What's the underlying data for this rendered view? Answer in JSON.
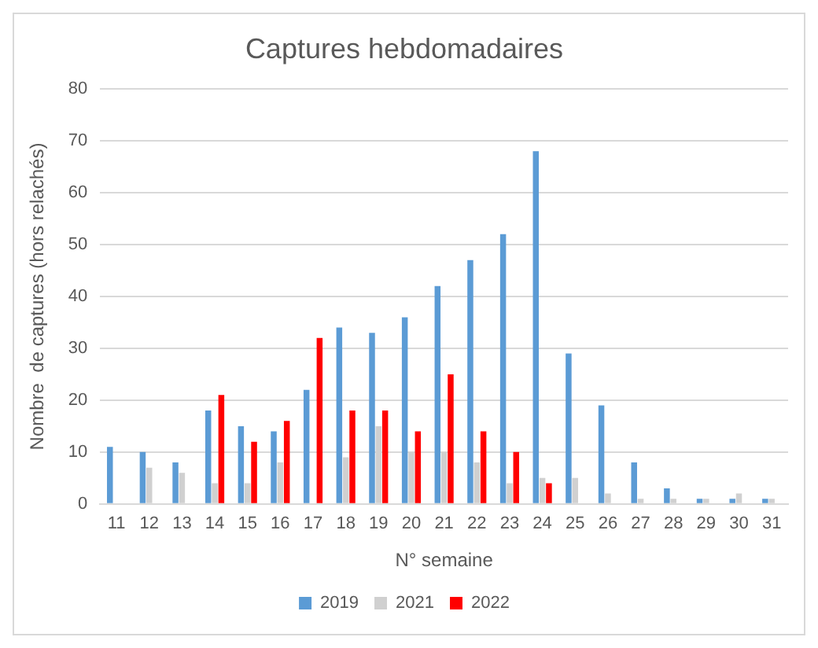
{
  "chart_data": {
    "type": "bar",
    "title": "Captures hebdomadaires",
    "xlabel": "N° semaine",
    "ylabel": "Nombre  de captures (hors relachés)",
    "categories": [
      "11",
      "12",
      "13",
      "14",
      "15",
      "16",
      "17",
      "18",
      "19",
      "20",
      "21",
      "22",
      "23",
      "24",
      "25",
      "26",
      "27",
      "28",
      "29",
      "30",
      "31"
    ],
    "series": [
      {
        "name": "2019",
        "color": "#5b9bd5",
        "values": [
          11,
          10,
          8,
          18,
          15,
          14,
          22,
          34,
          33,
          36,
          42,
          47,
          52,
          68,
          29,
          19,
          8,
          3,
          1,
          1,
          1
        ]
      },
      {
        "name": "2021",
        "color": "#d0d0d0",
        "values": [
          null,
          7,
          6,
          4,
          4,
          8,
          null,
          9,
          15,
          10,
          10,
          8,
          4,
          5,
          5,
          2,
          1,
          1,
          1,
          2,
          1
        ]
      },
      {
        "name": "2022",
        "color": "#ff0000",
        "values": [
          null,
          null,
          null,
          21,
          12,
          16,
          32,
          18,
          18,
          14,
          25,
          14,
          10,
          4,
          null,
          null,
          null,
          null,
          null,
          null,
          null
        ]
      }
    ],
    "ylim": [
      0,
      80
    ],
    "yticks": [
      0,
      10,
      20,
      30,
      40,
      50,
      60,
      70,
      80
    ],
    "grid": "y",
    "legend": "bottom"
  }
}
